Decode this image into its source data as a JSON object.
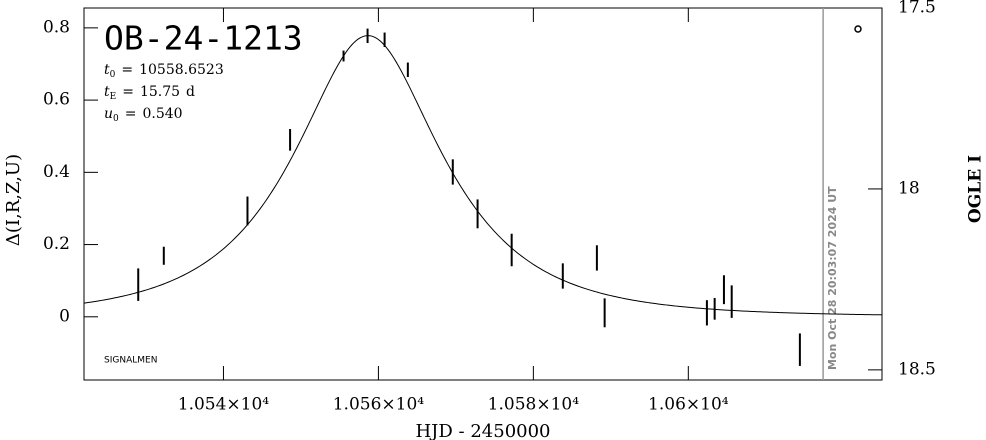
{
  "chart_data": {
    "type": "scatter",
    "title": "OB-24-1213",
    "param_sep": "=",
    "params": [
      {
        "name": "t",
        "sub": "0",
        "value": 10558.6523
      },
      {
        "name": "t",
        "sub": "E",
        "value": 15.75,
        "unit": "d"
      },
      {
        "name": "u",
        "sub": "0",
        "value": 0.54,
        "value_label": "0.540"
      }
    ],
    "x_label": "HJD - 2450000",
    "y_label": "Δ(I,R,Z,U)",
    "y2_label": "OGLE I",
    "footnote": "SIGNALMEN",
    "annotation": {
      "text": "Mon Oct 28 20:03:07 2024 UT",
      "x": 10617.4
    },
    "series": [
      {
        "color": "#000000",
        "x": [
          10529.0,
          10532.3,
          10543.1,
          10548.6,
          10555.5,
          10558.6,
          10560.8,
          10563.8,
          10569.6,
          10572.8,
          10577.2,
          10583.8,
          10588.2,
          10589.2,
          10602.4,
          10603.4,
          10604.6,
          10605.6,
          10614.4
        ],
        "values": [
          0.089,
          0.169,
          0.293,
          0.49,
          0.722,
          0.778,
          0.767,
          0.684,
          0.401,
          0.285,
          0.185,
          0.113,
          0.163,
          0.011,
          0.011,
          0.022,
          0.075,
          0.042,
          -0.091
        ],
        "errors": [
          0.045,
          0.025,
          0.04,
          0.03,
          0.015,
          0.02,
          0.02,
          0.02,
          0.035,
          0.04,
          0.045,
          0.035,
          0.035,
          0.04,
          0.035,
          0.03,
          0.04,
          0.045,
          0.045
        ]
      }
    ],
    "model_color": "#000000",
    "xlim": [
      10522,
      10625
    ],
    "xticks": [
      {
        "value": 10540,
        "label": "1.054×10⁴"
      },
      {
        "value": 10560,
        "label": "1.056×10⁴"
      },
      {
        "value": 10580,
        "label": "1.058×10⁴"
      },
      {
        "value": 10600,
        "label": "1.06×10⁴"
      }
    ],
    "ylim": [
      -0.175,
      0.855
    ],
    "yticks": [
      0,
      0.2,
      0.4,
      0.6,
      0.8
    ],
    "y2lim": [
      17.5,
      18.528
    ],
    "y2ticks": [
      17.5,
      18,
      18.5
    ]
  }
}
